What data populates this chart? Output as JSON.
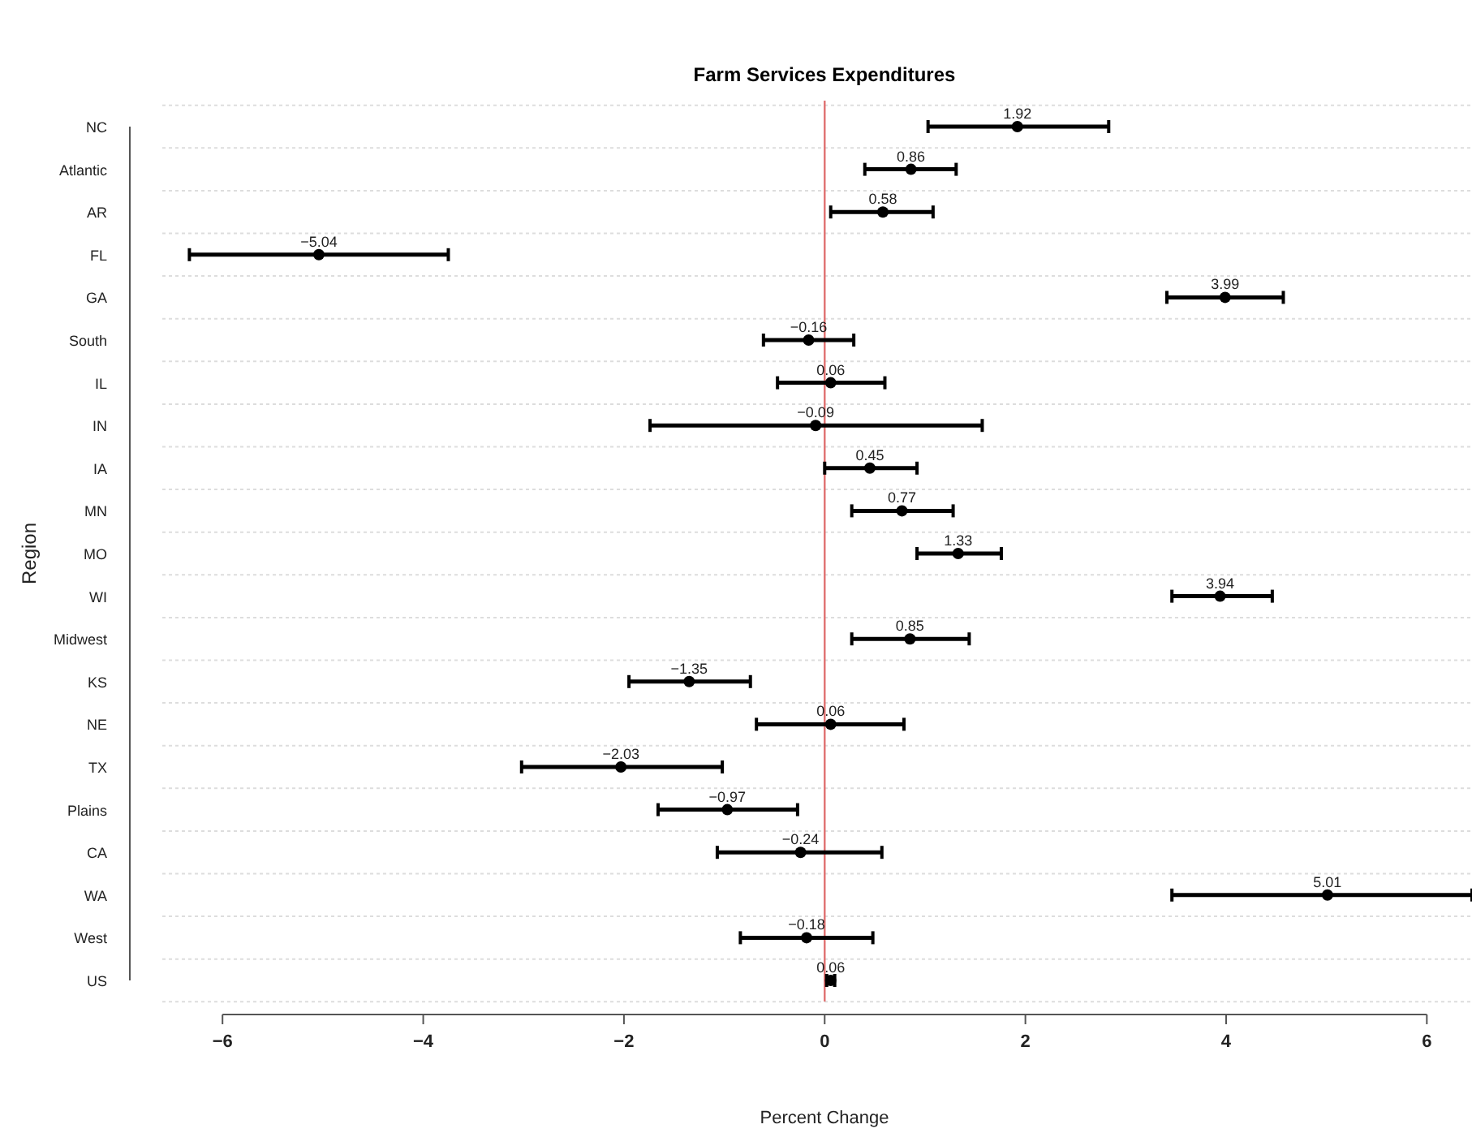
{
  "chart_data": {
    "type": "scatter",
    "title": "Farm Services Expenditures",
    "xlabel": "Percent Change",
    "ylabel": "Region",
    "orientation": "horizontal",
    "categories": [
      "NC",
      "Atlantic",
      "AR",
      "FL",
      "GA",
      "South",
      "IL",
      "IN",
      "IA",
      "MN",
      "MO",
      "WI",
      "Midwest",
      "KS",
      "NE",
      "TX",
      "Plains",
      "CA",
      "WA",
      "West",
      "US"
    ],
    "values": [
      1.92,
      0.86,
      0.58,
      -5.04,
      3.99,
      -0.16,
      0.06,
      -0.09,
      0.45,
      0.77,
      1.33,
      3.94,
      0.85,
      -1.35,
      0.06,
      -2.03,
      -0.97,
      -0.24,
      5.01,
      -0.18,
      0.06
    ],
    "errors": [
      [
        1.03,
        2.83
      ],
      [
        0.4,
        1.31
      ],
      [
        0.06,
        1.08
      ],
      [
        -6.33,
        -3.75
      ],
      [
        3.41,
        4.57
      ],
      [
        -0.61,
        0.29
      ],
      [
        -0.47,
        0.6
      ],
      [
        -1.74,
        1.57
      ],
      [
        0.0,
        0.92
      ],
      [
        0.27,
        1.28
      ],
      [
        0.92,
        1.76
      ],
      [
        3.46,
        4.46
      ],
      [
        0.27,
        1.44
      ],
      [
        -1.95,
        -0.74
      ],
      [
        -0.68,
        0.79
      ],
      [
        -3.02,
        -1.02
      ],
      [
        -1.66,
        -0.27
      ],
      [
        -1.07,
        0.57
      ],
      [
        3.46,
        6.45
      ],
      [
        -0.84,
        0.48
      ],
      [
        0.02,
        0.1
      ]
    ],
    "color": "#000000",
    "marker": "circle",
    "data_labels": true,
    "grid": "y",
    "xlim": [
      -6.6,
      6.45
    ],
    "xticks": [
      -6,
      -4,
      -2,
      0,
      2,
      4,
      6
    ],
    "ref_lines": [
      {
        "axis": "x",
        "value": 0,
        "color": "#e07070"
      }
    ]
  }
}
